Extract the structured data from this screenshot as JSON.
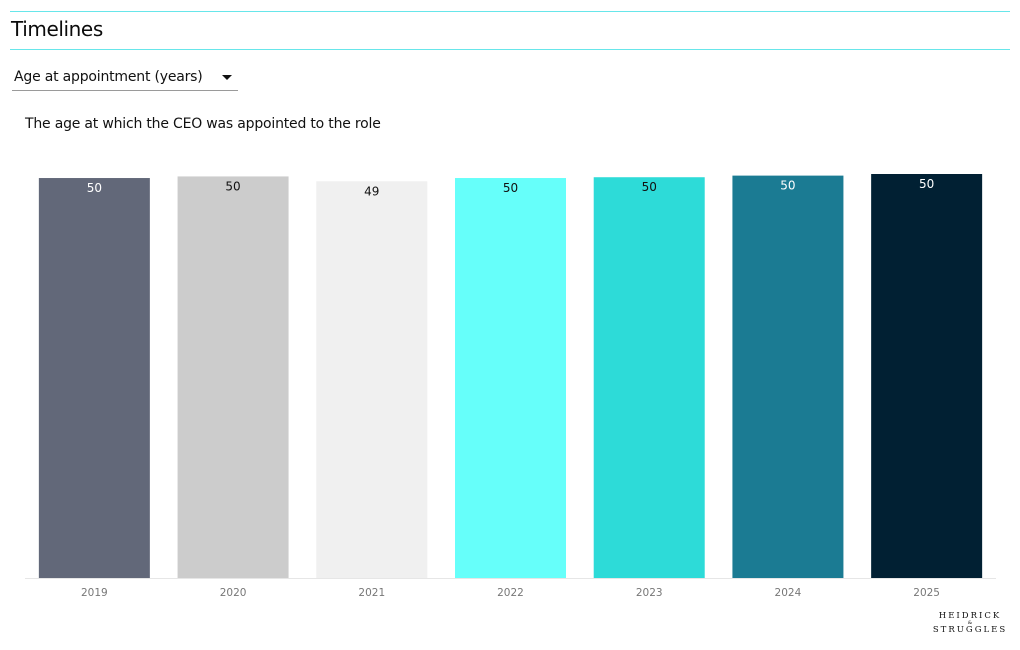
{
  "header": {
    "title": "Timelines"
  },
  "selector": {
    "selected": "Age at appointment (years)",
    "icon": "caret-down-icon"
  },
  "chart_data": {
    "type": "bar",
    "subtitle": "The age at which the CEO was appointed to the role",
    "categories": [
      "2019",
      "2020",
      "2021",
      "2022",
      "2023",
      "2024",
      "2025"
    ],
    "values": [
      50,
      50,
      49,
      50,
      50,
      50,
      50
    ],
    "display_values": [
      49.6,
      49.8,
      49.2,
      49.6,
      49.7,
      49.9,
      50.1
    ],
    "colors": [
      "#626879",
      "#cccccc",
      "#f0f0f0",
      "#66fffa",
      "#2ddbd8",
      "#1b7b93",
      "#012033"
    ],
    "label_colors": [
      "#ffffff",
      "#111111",
      "#111111",
      "#111111",
      "#111111",
      "#ffffff",
      "#ffffff"
    ],
    "ylim": [
      0,
      50.1
    ],
    "grid": false,
    "legend": "none"
  },
  "brand": {
    "line1": "HEIDRICK",
    "line2": "&",
    "line3": "STRUGGLES"
  }
}
